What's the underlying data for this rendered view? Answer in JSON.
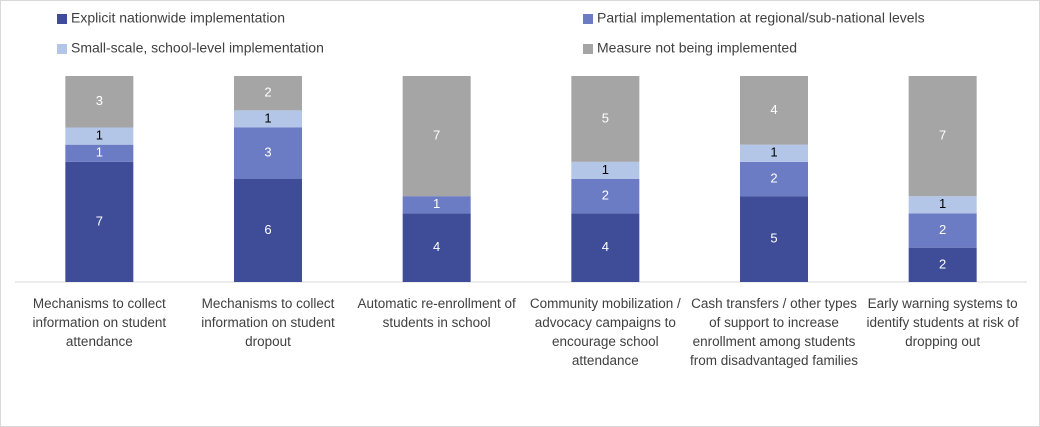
{
  "chart_data": {
    "type": "stacked_bar",
    "categories": [
      "Mechanisms to collect information on student attendance",
      "Mechanisms to collect information on student dropout",
      "Automatic re-enrollment of students in school",
      "Community mobilization / advocacy campaigns to encourage school attendance",
      "Cash transfers / other types of support to increase enrollment among students from disadvantaged families",
      "Early warning systems to identify students at risk of dropping out"
    ],
    "series": [
      {
        "name": "Explicit nationwide implementation",
        "color": "#3f4d99",
        "label_color": "#ffffff",
        "values": [
          7,
          6,
          4,
          4,
          5,
          2
        ]
      },
      {
        "name": "Partial implementation at regional/sub-national levels",
        "color": "#6b7bc4",
        "label_color": "#ffffff",
        "values": [
          1,
          3,
          1,
          2,
          2,
          2
        ]
      },
      {
        "name": "Small-scale, school-level implementation",
        "color": "#b4c6e7",
        "label_color": "#000000",
        "values": [
          1,
          1,
          null,
          1,
          1,
          1
        ]
      },
      {
        "name": "Measure not being implemented",
        "color": "#a5a5a5",
        "label_color": "#ffffff",
        "values": [
          3,
          2,
          7,
          5,
          4,
          7
        ]
      }
    ]
  }
}
